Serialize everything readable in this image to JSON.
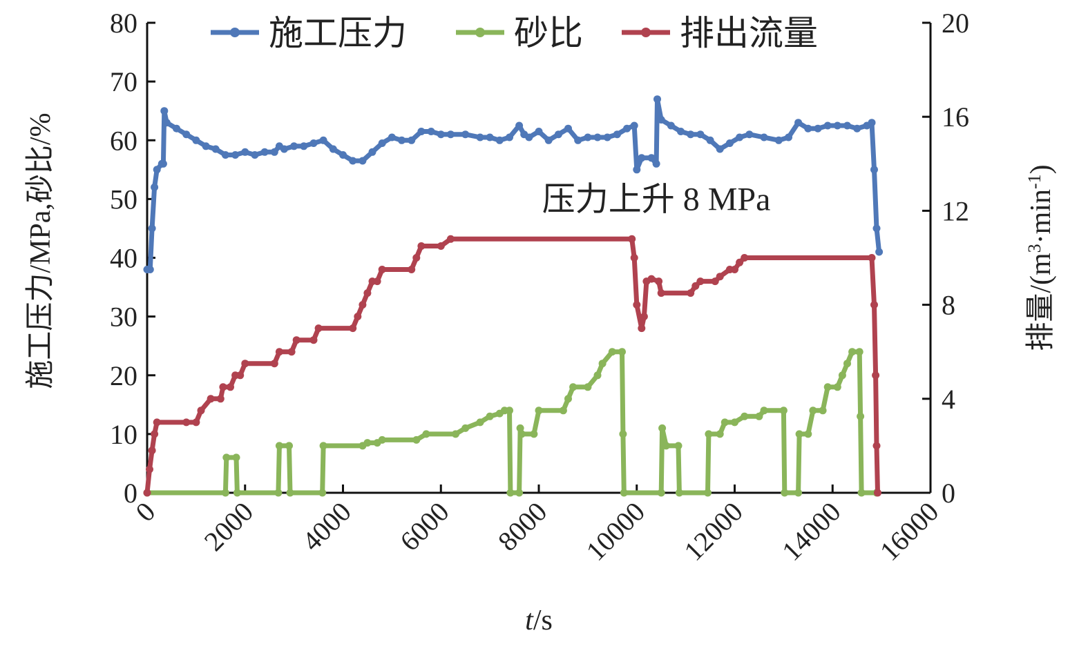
{
  "chart_data": {
    "type": "line",
    "xlabel": {
      "italic": "t",
      "rest": "/s"
    },
    "ylabel": "施工压力/MPa,砂比/%",
    "y2label": {
      "main": "排量/(m",
      "sup1": "3",
      "mid": "·min",
      "sup2": "-1",
      "end": ")"
    },
    "xlim": [
      0,
      16000
    ],
    "ylim": [
      0,
      80
    ],
    "y2lim": [
      0,
      20
    ],
    "x_ticks": [
      0,
      2000,
      4000,
      6000,
      8000,
      10000,
      12000,
      14000,
      16000
    ],
    "y_ticks": [
      0,
      10,
      20,
      30,
      40,
      50,
      60,
      70,
      80
    ],
    "y2_ticks": [
      0,
      4,
      8,
      12,
      16,
      20
    ],
    "legend_position": "top",
    "annotation": {
      "text": "压力上升 8 MPa",
      "x": 10400,
      "y": 50
    },
    "series": [
      {
        "name": "施工压力",
        "axis": "left",
        "color": "#4f78b8",
        "points": [
          [
            0,
            38
          ],
          [
            60,
            38
          ],
          [
            100,
            45
          ],
          [
            150,
            52
          ],
          [
            200,
            55
          ],
          [
            300,
            56
          ],
          [
            330,
            56
          ],
          [
            350,
            65
          ],
          [
            400,
            63
          ],
          [
            600,
            62
          ],
          [
            800,
            61
          ],
          [
            1000,
            60
          ],
          [
            1200,
            59
          ],
          [
            1400,
            58.5
          ],
          [
            1600,
            57.5
          ],
          [
            1800,
            57.5
          ],
          [
            2000,
            58
          ],
          [
            2200,
            57.5
          ],
          [
            2400,
            58
          ],
          [
            2600,
            58
          ],
          [
            2700,
            59
          ],
          [
            2800,
            58.5
          ],
          [
            3000,
            59
          ],
          [
            3200,
            59
          ],
          [
            3400,
            59.5
          ],
          [
            3600,
            60
          ],
          [
            3800,
            58.5
          ],
          [
            4000,
            57.5
          ],
          [
            4200,
            56.5
          ],
          [
            4400,
            56.5
          ],
          [
            4600,
            58
          ],
          [
            4800,
            59.5
          ],
          [
            5000,
            60.5
          ],
          [
            5200,
            60
          ],
          [
            5400,
            60
          ],
          [
            5600,
            61.5
          ],
          [
            5800,
            61.5
          ],
          [
            6000,
            61
          ],
          [
            6200,
            61
          ],
          [
            6500,
            61
          ],
          [
            6800,
            60.5
          ],
          [
            7000,
            60.5
          ],
          [
            7200,
            60
          ],
          [
            7400,
            60.5
          ],
          [
            7600,
            62.5
          ],
          [
            7700,
            61
          ],
          [
            7800,
            60.5
          ],
          [
            8000,
            61.5
          ],
          [
            8200,
            60
          ],
          [
            8400,
            61
          ],
          [
            8600,
            62
          ],
          [
            8800,
            60
          ],
          [
            9000,
            60.5
          ],
          [
            9200,
            60.5
          ],
          [
            9400,
            60.5
          ],
          [
            9600,
            61
          ],
          [
            9800,
            62
          ],
          [
            9950,
            62.5
          ],
          [
            10000,
            55
          ],
          [
            10100,
            57
          ],
          [
            10300,
            57
          ],
          [
            10400,
            56
          ],
          [
            10420,
            67
          ],
          [
            10500,
            63.5
          ],
          [
            10700,
            62.5
          ],
          [
            10900,
            61.5
          ],
          [
            11100,
            61
          ],
          [
            11300,
            61
          ],
          [
            11500,
            60
          ],
          [
            11700,
            58.5
          ],
          [
            11900,
            59.5
          ],
          [
            12100,
            60.5
          ],
          [
            12300,
            61
          ],
          [
            12600,
            60.5
          ],
          [
            12900,
            60
          ],
          [
            13100,
            60.5
          ],
          [
            13300,
            63
          ],
          [
            13500,
            62
          ],
          [
            13700,
            62
          ],
          [
            13900,
            62.5
          ],
          [
            14100,
            62.5
          ],
          [
            14300,
            62.5
          ],
          [
            14500,
            62
          ],
          [
            14700,
            62.5
          ],
          [
            14800,
            63
          ],
          [
            14850,
            55
          ],
          [
            14900,
            45
          ],
          [
            14950,
            41
          ]
        ]
      },
      {
        "name": "砂比",
        "axis": "left",
        "color": "#8ab55a",
        "points": [
          [
            0,
            0
          ],
          [
            1600,
            0
          ],
          [
            1620,
            6
          ],
          [
            1820,
            6
          ],
          [
            1840,
            0
          ],
          [
            2680,
            0
          ],
          [
            2700,
            8
          ],
          [
            2900,
            8
          ],
          [
            2920,
            0
          ],
          [
            3580,
            0
          ],
          [
            3600,
            8
          ],
          [
            4400,
            8
          ],
          [
            4500,
            8.5
          ],
          [
            4700,
            8.5
          ],
          [
            4800,
            9
          ],
          [
            5500,
            9
          ],
          [
            5700,
            10
          ],
          [
            6300,
            10
          ],
          [
            6500,
            11
          ],
          [
            6800,
            12
          ],
          [
            7000,
            13
          ],
          [
            7200,
            13.5
          ],
          [
            7300,
            14
          ],
          [
            7400,
            14
          ],
          [
            7420,
            0
          ],
          [
            7600,
            0
          ],
          [
            7620,
            11
          ],
          [
            7650,
            10
          ],
          [
            7900,
            10
          ],
          [
            8000,
            14
          ],
          [
            8500,
            14
          ],
          [
            8600,
            16
          ],
          [
            8700,
            18
          ],
          [
            9000,
            18
          ],
          [
            9200,
            20
          ],
          [
            9300,
            22
          ],
          [
            9500,
            24
          ],
          [
            9700,
            24
          ],
          [
            9720,
            10
          ],
          [
            9740,
            0
          ],
          [
            10500,
            0
          ],
          [
            10520,
            11
          ],
          [
            10600,
            8
          ],
          [
            10850,
            8
          ],
          [
            10870,
            0
          ],
          [
            11450,
            0
          ],
          [
            11470,
            10
          ],
          [
            11700,
            10
          ],
          [
            11800,
            12
          ],
          [
            12000,
            12
          ],
          [
            12200,
            13
          ],
          [
            12500,
            13
          ],
          [
            12600,
            14
          ],
          [
            13000,
            14
          ],
          [
            13020,
            0
          ],
          [
            13300,
            0
          ],
          [
            13320,
            10
          ],
          [
            13500,
            10
          ],
          [
            13600,
            14
          ],
          [
            13800,
            14
          ],
          [
            13900,
            18
          ],
          [
            14100,
            18
          ],
          [
            14200,
            20
          ],
          [
            14300,
            22
          ],
          [
            14400,
            24
          ],
          [
            14550,
            24
          ],
          [
            14570,
            13
          ],
          [
            14590,
            0
          ],
          [
            14900,
            0
          ]
        ]
      },
      {
        "name": "排出流量",
        "axis": "right",
        "color": "#b0424f",
        "points": [
          [
            0,
            0
          ],
          [
            50,
            1
          ],
          [
            100,
            1.8
          ],
          [
            150,
            2.5
          ],
          [
            200,
            3
          ],
          [
            800,
            3
          ],
          [
            1000,
            3
          ],
          [
            1100,
            3.5
          ],
          [
            1300,
            4
          ],
          [
            1500,
            4
          ],
          [
            1550,
            4.5
          ],
          [
            1700,
            4.5
          ],
          [
            1800,
            5
          ],
          [
            1900,
            5
          ],
          [
            2000,
            5.5
          ],
          [
            2600,
            5.5
          ],
          [
            2700,
            6
          ],
          [
            2950,
            6
          ],
          [
            3050,
            6.5
          ],
          [
            3400,
            6.5
          ],
          [
            3500,
            7
          ],
          [
            4200,
            7
          ],
          [
            4300,
            7.5
          ],
          [
            4400,
            8
          ],
          [
            4500,
            8.5
          ],
          [
            4600,
            9
          ],
          [
            4700,
            9
          ],
          [
            4800,
            9.5
          ],
          [
            5400,
            9.5
          ],
          [
            5500,
            10
          ],
          [
            5600,
            10.5
          ],
          [
            6000,
            10.5
          ],
          [
            6200,
            10.8
          ],
          [
            9900,
            10.8
          ],
          [
            9950,
            10
          ],
          [
            10000,
            8
          ],
          [
            10100,
            7
          ],
          [
            10150,
            7.5
          ],
          [
            10200,
            9
          ],
          [
            10300,
            9.1
          ],
          [
            10450,
            9
          ],
          [
            10500,
            8.5
          ],
          [
            11100,
            8.5
          ],
          [
            11200,
            8.8
          ],
          [
            11300,
            9
          ],
          [
            11600,
            9
          ],
          [
            11700,
            9.2
          ],
          [
            11900,
            9.5
          ],
          [
            12000,
            9.5
          ],
          [
            12100,
            9.8
          ],
          [
            12200,
            10
          ],
          [
            14800,
            10
          ],
          [
            14850,
            8
          ],
          [
            14880,
            5
          ],
          [
            14900,
            2
          ],
          [
            14920,
            0
          ]
        ]
      }
    ]
  }
}
